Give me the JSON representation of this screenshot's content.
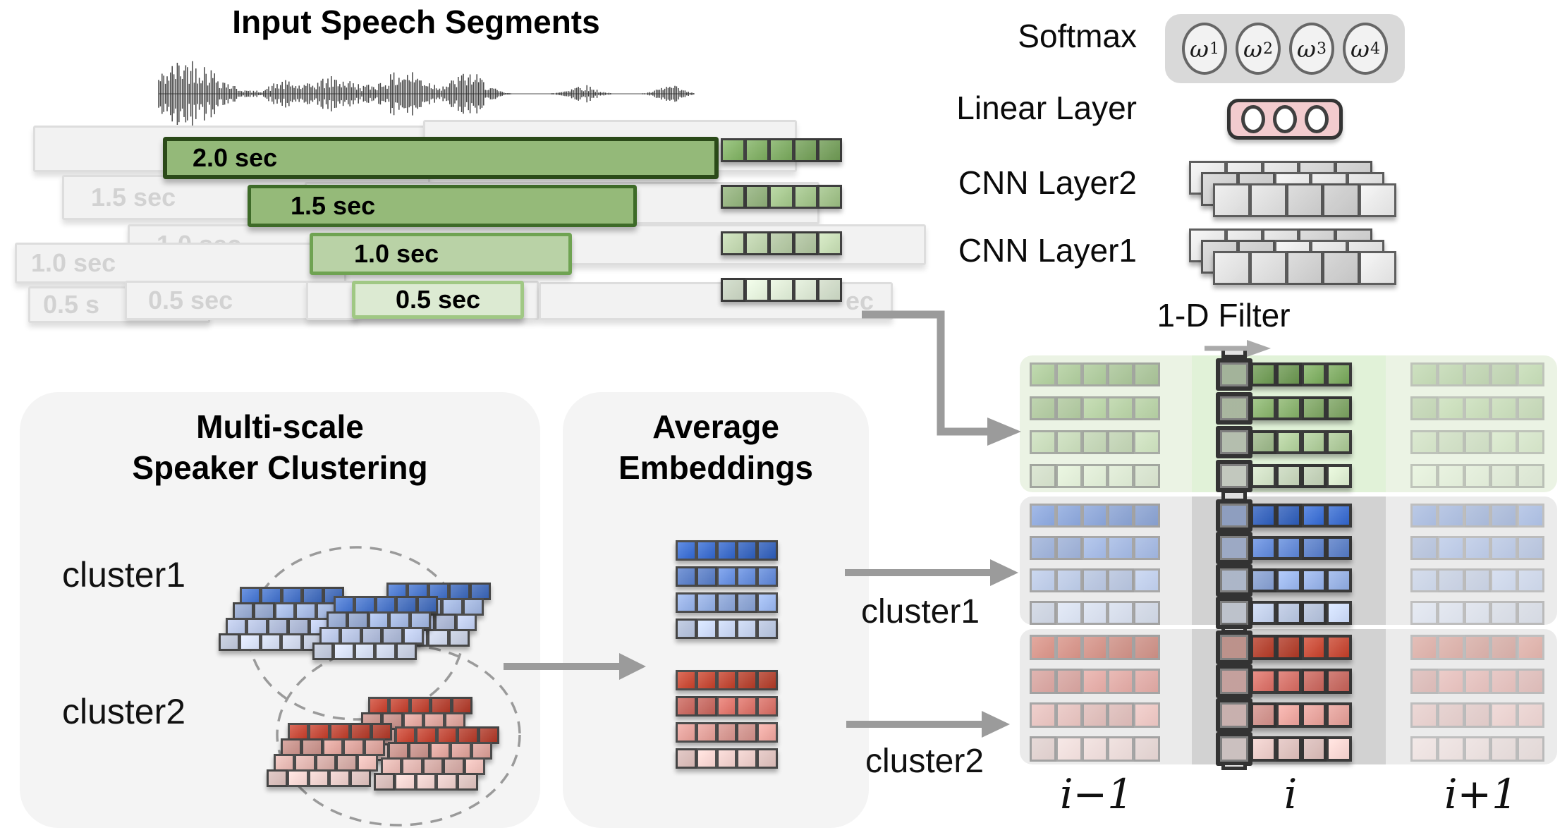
{
  "input_segments": {
    "title": "Input Speech Segments",
    "segments": [
      {
        "label": "2.0 sec"
      },
      {
        "label": "1.5 sec"
      },
      {
        "label": "1.0 sec"
      },
      {
        "label": "0.5 sec"
      }
    ],
    "ghosts": [
      {
        "label": "1.5 sec"
      },
      {
        "label": "1.0 sec"
      },
      {
        "label": "1.0 sec"
      },
      {
        "label": "0.5 s"
      },
      {
        "label": "0.5 sec"
      },
      {
        "label": "0.5 sec"
      },
      {
        "label": "ec"
      }
    ]
  },
  "network": {
    "softmax_label": "Softmax",
    "linear_label": "Linear Layer",
    "cnn2_label": "CNN Layer2",
    "cnn1_label": "CNN Layer1",
    "filter_label": "1-D Filter",
    "weights": [
      {
        "base": "ω",
        "sub": "1"
      },
      {
        "base": "ω",
        "sub": "2"
      },
      {
        "base": "ω",
        "sub": "3"
      },
      {
        "base": "ω",
        "sub": "4"
      }
    ]
  },
  "clustering": {
    "title_line1": "Multi-scale",
    "title_line2": "Speaker Clustering",
    "cluster1_label": "cluster1",
    "cluster2_label": "cluster2"
  },
  "average": {
    "title_line1": "Average",
    "title_line2": "Embeddings"
  },
  "flow": {
    "cluster1_label": "cluster1",
    "cluster2_label": "cluster2"
  },
  "matrix": {
    "col_labels": [
      {
        "text": "i−1"
      },
      {
        "text": "i"
      },
      {
        "text": "i+1"
      }
    ]
  },
  "colors": {
    "panel_bg": "#f4f4f4",
    "arrow": "#9b9b9b",
    "ghost_fill": "#f2f2f2",
    "ghost_border": "#dddddd",
    "ghost_text": "#d2d2d2",
    "softmax_pill": "#d9d9d9",
    "linear_fill": "#f2cbce",
    "cnn_cell": "#e2e2e2",
    "waveform": "#2b2b2b",
    "seg_bars": [
      {
        "fill": "#94b979",
        "border": "#2b4a19"
      },
      {
        "fill": "#95ba79",
        "border": "#3e6b28"
      },
      {
        "fill": "#b9d2a6",
        "border": "#6fa352"
      },
      {
        "fill": "#dcead2",
        "border": "#a0c884"
      }
    ],
    "strip_greens": [
      "#79aa5b",
      "#9cc083",
      "#bfd6ac",
      "#dfecd6"
    ],
    "matrix_green": [
      "#74a556",
      "#85b167",
      "#aac994",
      "#d6e7c9"
    ],
    "matrix_blue": [
      "#2f64cc",
      "#5c86da",
      "#92afe8",
      "#c6d5f3"
    ],
    "matrix_red": [
      "#c23d27",
      "#d96a60",
      "#e79d96",
      "#f2cfcb"
    ],
    "cluster_blue": [
      "#3d6dc9",
      "#9fb5e2",
      "#b9c7ea",
      "#d3dcf2"
    ],
    "cluster_red": [
      "#c03a27",
      "#dc9d95",
      "#e8b7b1",
      "#f0d0cc"
    ],
    "band_green": "#ebf3e4",
    "band_green_hl": "#e1f2d8",
    "band_gray": "#ebebeb",
    "band_gray_hl": "#d2d2d2",
    "filter_border": "#333333"
  }
}
